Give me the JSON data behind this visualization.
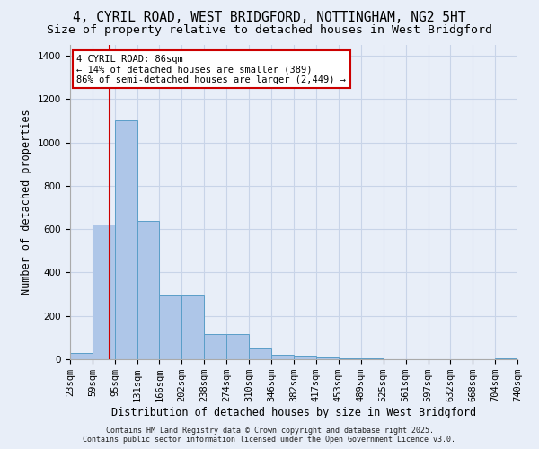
{
  "title_line1": "4, CYRIL ROAD, WEST BRIDGFORD, NOTTINGHAM, NG2 5HT",
  "title_line2": "Size of property relative to detached houses in West Bridgford",
  "xlabel": "Distribution of detached houses by size in West Bridgford",
  "ylabel": "Number of detached properties",
  "footer_line1": "Contains HM Land Registry data © Crown copyright and database right 2025.",
  "footer_line2": "Contains public sector information licensed under the Open Government Licence v3.0.",
  "bin_edges": [
    23,
    59,
    95,
    131,
    166,
    202,
    238,
    274,
    310,
    346,
    382,
    417,
    453,
    489,
    525,
    561,
    597,
    632,
    668,
    704,
    740
  ],
  "bar_heights": [
    30,
    620,
    1100,
    640,
    295,
    295,
    115,
    115,
    50,
    20,
    15,
    10,
    5,
    3,
    2,
    1,
    1,
    0,
    0,
    5
  ],
  "bar_color": "#aec6e8",
  "bar_edgecolor": "#5a9ec8",
  "grid_color": "#c8d4e8",
  "bg_color": "#e8eef8",
  "vline_x": 86,
  "vline_color": "#cc0000",
  "annotation_text": "4 CYRIL ROAD: 86sqm\n← 14% of detached houses are smaller (389)\n86% of semi-detached houses are larger (2,449) →",
  "annotation_box_edgecolor": "#cc0000",
  "annotation_box_facecolor": "#ffffff",
  "ylim": [
    0,
    1450
  ],
  "yticks": [
    0,
    200,
    400,
    600,
    800,
    1000,
    1200,
    1400
  ],
  "title_fontsize": 10.5,
  "subtitle_fontsize": 9.5,
  "axis_label_fontsize": 8.5,
  "tick_fontsize": 7.5,
  "annotation_fontsize": 7.5,
  "footer_fontsize": 6.0
}
